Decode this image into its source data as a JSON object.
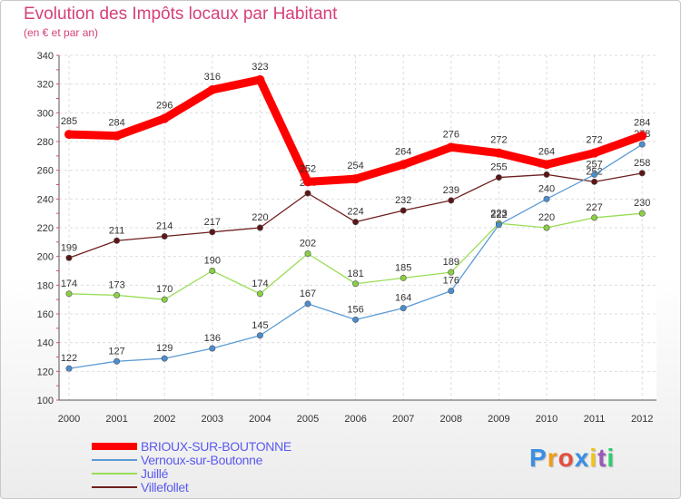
{
  "chart_data": {
    "type": "line",
    "title": "Evolution des Impôts locaux par Habitant",
    "subtitle": "(en € et par an)",
    "xlabel": "",
    "ylabel": "",
    "x": [
      "2000",
      "2001",
      "2002",
      "2003",
      "2004",
      "2005",
      "2006",
      "2007",
      "2008",
      "2009",
      "2010",
      "2011",
      "2012"
    ],
    "ylim": [
      100,
      340
    ],
    "yticks": [
      100,
      120,
      140,
      160,
      180,
      200,
      220,
      240,
      260,
      280,
      300,
      320,
      340
    ],
    "grid": true,
    "legend_position": "bottom-left",
    "series": [
      {
        "name": "BRIOUX-SUR-BOUTONNE",
        "color": "#ff0000",
        "values": [
          285,
          284,
          296,
          316,
          323,
          252,
          254,
          264,
          276,
          272,
          264,
          272,
          284
        ]
      },
      {
        "name": "Vernoux-sur-Boutonne",
        "color": "#5b9bd5",
        "values": [
          122,
          127,
          129,
          136,
          145,
          167,
          156,
          164,
          176,
          222,
          240,
          257,
          278
        ]
      },
      {
        "name": "Juillé",
        "color": "#99dd55",
        "values": [
          174,
          173,
          170,
          190,
          174,
          202,
          181,
          185,
          189,
          223,
          220,
          227,
          230
        ]
      },
      {
        "name": "Villefollet",
        "color": "#6e1e1e",
        "values": [
          199,
          211,
          214,
          217,
          220,
          244,
          224,
          232,
          239,
          255,
          257,
          252,
          258
        ]
      }
    ]
  },
  "logo": {
    "letters": [
      "P",
      "r",
      "o",
      "x",
      "i",
      "t",
      "i"
    ],
    "colors": [
      "#3a8ee6",
      "#f39c12",
      "#e74c3c",
      "#3a8ee6",
      "#f1c40f",
      "#9b59b6",
      "#2ecc71"
    ]
  }
}
